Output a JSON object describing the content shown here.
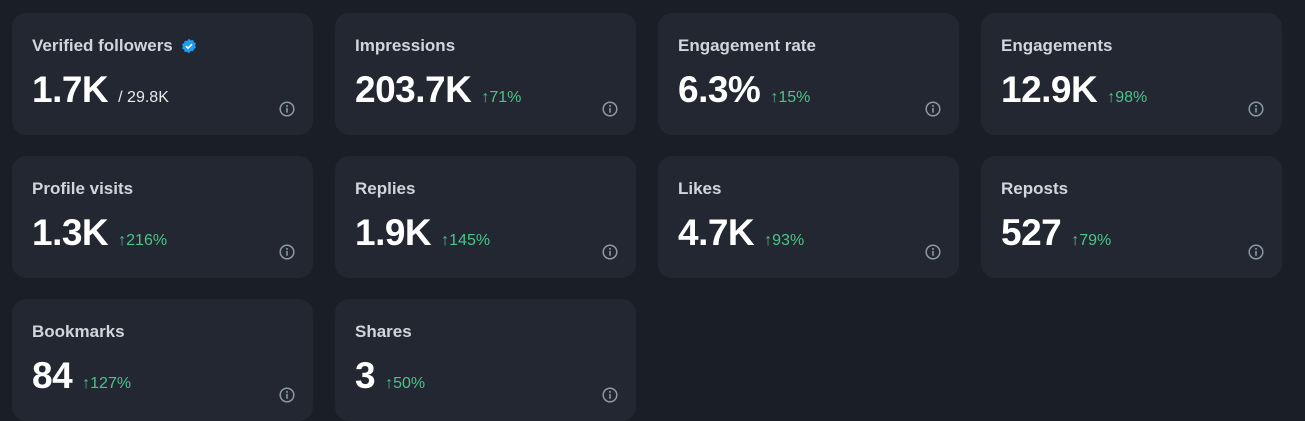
{
  "cards": [
    {
      "title": "Verified followers",
      "value": "1.7K",
      "sub": "/ 29.8K",
      "delta": "",
      "verified": true
    },
    {
      "title": "Impressions",
      "value": "203.7K",
      "delta": "71%"
    },
    {
      "title": "Engagement rate",
      "value": "6.3%",
      "delta": "15%"
    },
    {
      "title": "Engagements",
      "value": "12.9K",
      "delta": "98%"
    },
    {
      "title": "Profile visits",
      "value": "1.3K",
      "delta": "216%"
    },
    {
      "title": "Replies",
      "value": "1.9K",
      "delta": "145%"
    },
    {
      "title": "Likes",
      "value": "4.7K",
      "delta": "93%"
    },
    {
      "title": "Reposts",
      "value": "527",
      "delta": "79%"
    },
    {
      "title": "Bookmarks",
      "value": "84",
      "delta": "127%"
    },
    {
      "title": "Shares",
      "value": "3",
      "delta": "50%"
    }
  ],
  "delta_arrow": "↑",
  "colors": {
    "background": "#1a1e27",
    "card": "#222731",
    "positive": "#4cc38a",
    "verified": "#1d9bf0"
  },
  "icons": {
    "verified": "verified-badge-icon",
    "info": "info-icon"
  }
}
